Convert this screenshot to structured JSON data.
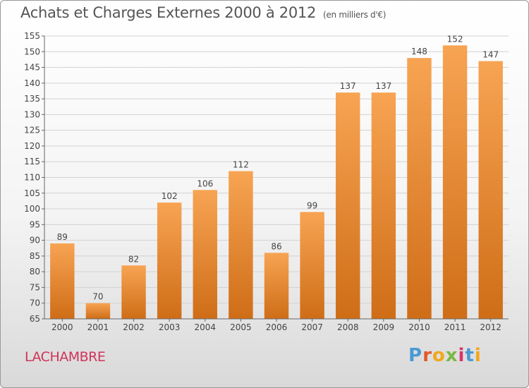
{
  "header": {
    "title": "Achats et Charges Externes 2000 à 2012",
    "subtitle": "(en milliers d'€)"
  },
  "footer": {
    "place": "LACHAMBRE",
    "logo": [
      "P",
      "r",
      "o",
      "x",
      "i",
      "t",
      "i"
    ]
  },
  "colors": {
    "bar_top": "#f7a453",
    "bar_bottom": "#cf6d17",
    "logo": [
      "#4a9ad4",
      "#e25a2a",
      "#f2a71b",
      "#7bb842",
      "#d9346a",
      "#4a9ad4",
      "#f2a71b"
    ]
  },
  "chart_data": {
    "type": "bar",
    "title": "Achats et Charges Externes 2000 à 2012",
    "subtitle": "(en milliers d'€)",
    "xlabel": "",
    "ylabel": "",
    "ylim": [
      65,
      155
    ],
    "yticks": [
      65,
      70,
      75,
      80,
      85,
      90,
      95,
      100,
      105,
      110,
      115,
      120,
      125,
      130,
      135,
      140,
      145,
      150,
      155
    ],
    "grid": true,
    "categories": [
      "2000",
      "2001",
      "2002",
      "2003",
      "2004",
      "2005",
      "2006",
      "2007",
      "2008",
      "2009",
      "2010",
      "2011",
      "2012"
    ],
    "values": [
      89,
      70,
      82,
      102,
      106,
      112,
      86,
      99,
      137,
      137,
      148,
      152,
      147
    ]
  }
}
